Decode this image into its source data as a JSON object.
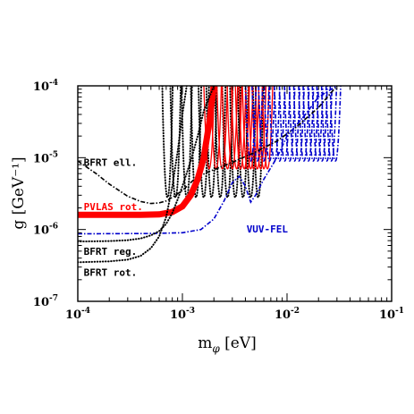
{
  "chart_data": {
    "type": "line",
    "xscale": "log",
    "yscale": "log",
    "xlim": [
      0.0001,
      0.1
    ],
    "ylim": [
      1e-07,
      0.0001
    ],
    "xlabel": {
      "base": "m",
      "sub": "φ",
      "unit": " [eV]"
    },
    "ylabel": "g  [GeV⁻¹]",
    "x_ticks": [
      {
        "value": 0.0001,
        "base": "10",
        "exp": "-4"
      },
      {
        "value": 0.001,
        "base": "10",
        "exp": "-3"
      },
      {
        "value": 0.01,
        "base": "10",
        "exp": "-2"
      },
      {
        "value": 0.1,
        "base": "10",
        "exp": "-1"
      }
    ],
    "y_ticks": [
      {
        "value": 1e-07,
        "base": "10",
        "exp": "-7"
      },
      {
        "value": 1e-06,
        "base": "10",
        "exp": "-6"
      },
      {
        "value": 1e-05,
        "base": "10",
        "exp": "-5"
      },
      {
        "value": 0.0001,
        "base": "10",
        "exp": "-4"
      }
    ],
    "series": [
      {
        "key": "bfrt-ell",
        "name": "BFRT ell.",
        "color": "#000000",
        "style": "dash-dot",
        "x": [
          0.0001,
          0.00015,
          0.0002,
          0.0003,
          0.0004,
          0.0005,
          0.0006,
          0.0007,
          0.0008,
          0.001,
          0.0013,
          0.0017,
          0.002,
          0.003,
          0.005,
          0.008,
          0.012,
          0.02,
          0.03
        ],
        "y": [
          9e-06,
          6e-06,
          4.3e-06,
          2.9e-06,
          2.45e-06,
          2.3e-06,
          2.35e-06,
          2.5e-06,
          2.8e-06,
          3.5e-06,
          5e-06,
          6.2e-06,
          6.8e-06,
          8.6e-06,
          1.2e-05,
          1.7e-05,
          2.6e-05,
          5e-05,
          0.0001
        ]
      },
      {
        "key": "pvlas-rot",
        "name": "PVLAS rot.",
        "color": "#ff0000",
        "style": "solid-thick",
        "x": [
          0.0001,
          0.0002,
          0.0004,
          0.0006,
          0.0008,
          0.001,
          0.0012,
          0.0014,
          0.0016,
          0.0018,
          0.002
        ],
        "y": [
          1.6e-06,
          1.6e-06,
          1.6e-06,
          1.62e-06,
          1.75e-06,
          2.1e-06,
          3e-06,
          5e-06,
          1e-05,
          3e-05,
          0.0001
        ]
      },
      {
        "key": "vuv-fel",
        "name": "VUV-FEL",
        "color": "#0000cc",
        "style": "dash-dot",
        "x": [
          0.0001,
          0.0005,
          0.001,
          0.0015,
          0.002,
          0.0025,
          0.003,
          0.0035,
          0.004,
          0.0045,
          0.005,
          0.006,
          0.008,
          0.01,
          0.015,
          0.02,
          0.03
        ],
        "y": [
          8.7e-07,
          8.8e-07,
          9e-07,
          1e-06,
          1.4e-06,
          2.5e-06,
          4.5e-06,
          5.5e-06,
          4e-06,
          2.4e-06,
          3e-06,
          5e-06,
          1e-05,
          2e-05,
          4e-05,
          7e-05,
          0.0001
        ]
      },
      {
        "key": "bfrt-reg",
        "name": "BFRT reg.",
        "color": "#000000",
        "style": "dotted",
        "x": [
          0.0001,
          0.0002,
          0.0003,
          0.0004,
          0.0005,
          0.0006,
          0.0007,
          0.0008,
          0.0009,
          0.001,
          0.0012,
          0.0014,
          0.0016,
          0.002
        ],
        "y": [
          6.8e-07,
          6.9e-07,
          7.1e-07,
          7.5e-07,
          8.3e-07,
          9.5e-07,
          1.2e-06,
          1.7e-06,
          2.6e-06,
          4e-06,
          9e-06,
          2e-05,
          4.5e-05,
          0.0001
        ]
      },
      {
        "key": "bfrt-rot",
        "name": "BFRT rot.",
        "color": "#000000",
        "style": "dotted",
        "x": [
          0.0001,
          0.0002,
          0.0003,
          0.0004,
          0.0005,
          0.0006,
          0.0007,
          0.0008,
          0.0009,
          0.001,
          0.0011
        ],
        "y": [
          3.5e-07,
          3.6e-07,
          3.8e-07,
          4.3e-07,
          5.5e-07,
          8e-07,
          1.5e-06,
          4e-06,
          1.2e-05,
          4e-05,
          0.0001
        ]
      }
    ],
    "oscillation_bands": [
      {
        "key": "bfrt-osc",
        "color": "#000000",
        "style": "dotted",
        "peaks": [
          0.00072,
          0.00086,
          0.0011,
          0.00135,
          0.0016,
          0.0019,
          0.0023,
          0.0027,
          0.0032,
          0.0038,
          0.0045,
          0.0053
        ],
        "floor": 2.8e-06
      },
      {
        "key": "pvlas-osc",
        "color": "#ff0000",
        "style": "solid",
        "peaks": [
          0.0018,
          0.0021,
          0.0024,
          0.0027,
          0.003,
          0.0033,
          0.0036,
          0.0039,
          0.0042,
          0.0045,
          0.0048,
          0.0052,
          0.0056,
          0.006,
          0.0065
        ],
        "floor": 7e-06
      },
      {
        "key": "vuv-osc",
        "color": "#0000cc",
        "style": "dash-dot",
        "peaks": [
          0.0045,
          0.0052,
          0.006,
          0.0068,
          0.0076,
          0.0085,
          0.0095,
          0.0106,
          0.0118,
          0.013,
          0.0145,
          0.016,
          0.0178,
          0.0196,
          0.0216,
          0.024,
          0.0265,
          0.029
        ],
        "floor": 9e-06
      }
    ],
    "annotations": [
      {
        "key": "bfrt-ell",
        "text": "BFRT ell.",
        "color": "#000000",
        "x": 0.000114,
        "y": 8.6e-06
      },
      {
        "key": "pvlas-rot",
        "text": "PVLAS rot.",
        "color": "#ff0000",
        "x": 0.000114,
        "y": 2.1e-06
      },
      {
        "key": "vuv-fel",
        "text": "VUV-FEL",
        "color": "#0000cc",
        "x": 0.0041,
        "y": 1.02e-06
      },
      {
        "key": "bfrt-reg",
        "text": "BFRT reg.",
        "color": "#000000",
        "x": 0.000114,
        "y": 5e-07
      },
      {
        "key": "bfrt-rot",
        "text": "BFRT rot.",
        "color": "#000000",
        "x": 0.000114,
        "y": 2.55e-07
      }
    ]
  }
}
